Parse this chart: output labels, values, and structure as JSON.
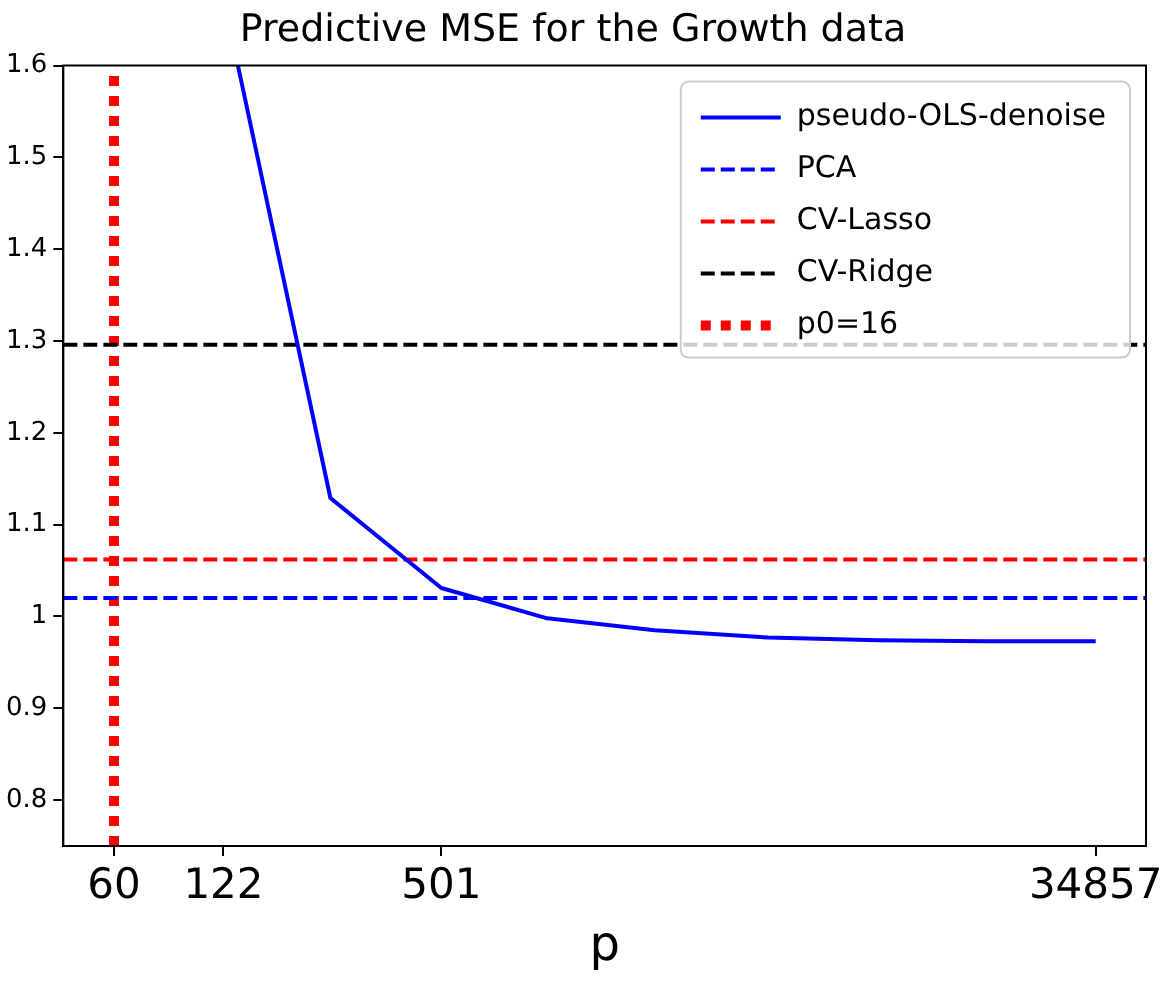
{
  "chart_data": {
    "type": "line",
    "title": "Predictive MSE for the Growth data",
    "xlabel": "p",
    "log": "x",
    "xlim": [
      43.2,
      48300
    ],
    "xticks": [
      60,
      122,
      501,
      34857
    ],
    "ylim": [
      0.75,
      1.6
    ],
    "yticks": [
      0.8,
      0.9,
      1.0,
      1.1,
      1.2,
      1.3,
      1.4,
      1.5,
      1.6
    ],
    "grid": false,
    "legend": "top right",
    "line_style": "solid",
    "marker": "none",
    "series": [
      {
        "name": "pseudo-OLS-denoise",
        "color": "#0000ff",
        "x": [
          134,
          244,
          501,
          995,
          2000,
          4170,
          8500,
          17000,
          34857
        ],
        "values": [
          1.6,
          1.129,
          1.031,
          0.998,
          0.985,
          0.977,
          0.974,
          0.973,
          0.973
        ]
      },
      {
        "name": "p0=16",
        "type": "line",
        "color": "#ff0000",
        "line_style": "dotted",
        "x": [
          60,
          60
        ],
        "values": [
          0.75,
          1.6
        ]
      }
    ],
    "ref_lines": [
      {
        "axis": "y",
        "value": 1.02,
        "label": "PCA",
        "color": "#0000ff",
        "line_style": "dashed"
      },
      {
        "axis": "y",
        "value": 1.062,
        "label": "CV-Lasso",
        "color": "#ff0000",
        "line_style": "dashed"
      },
      {
        "axis": "y",
        "value": 1.296,
        "label": "CV-Ridge",
        "color": "#000000",
        "line_style": "dashed"
      }
    ]
  }
}
